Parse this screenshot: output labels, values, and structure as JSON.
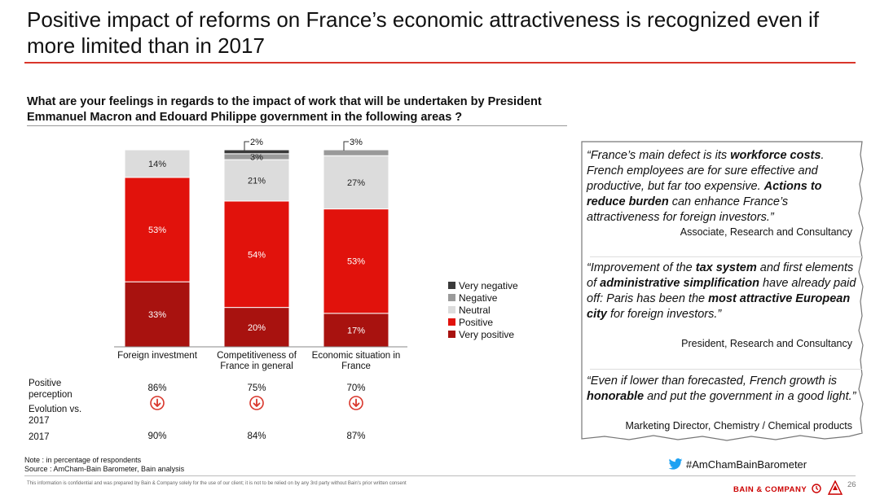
{
  "title": "Positive impact of reforms on France’s economic attractiveness is recognized even if more limited than in 2017",
  "question": "What are your feelings in regards to the impact of work that will be undertaken by President Emmanuel Macron and Edouard Philippe government in the following areas ?",
  "chart_data": {
    "type": "bar",
    "stacked": true,
    "categories": [
      "Foreign investment",
      "Competitiveness of France in general",
      "Economic situation in France"
    ],
    "series": [
      {
        "name": "Very positive",
        "color": "#a8120f",
        "values": [
          33,
          20,
          17
        ],
        "labels": [
          "33%",
          "20%",
          "17%"
        ]
      },
      {
        "name": "Positive",
        "color": "#e1120c",
        "values": [
          53,
          54,
          53
        ],
        "labels": [
          "53%",
          "54%",
          "53%"
        ]
      },
      {
        "name": "Neutral",
        "color": "#dcdcdc",
        "values": [
          14,
          21,
          27
        ],
        "labels": [
          "14%",
          "21%",
          "27%"
        ]
      },
      {
        "name": "Negative",
        "color": "#9a9a9a",
        "values": [
          0,
          3,
          3
        ],
        "labels": [
          "",
          "3%",
          ""
        ]
      },
      {
        "name": "Very negative",
        "color": "#3a3a3a",
        "values": [
          0,
          2,
          0
        ],
        "labels": [
          "",
          "",
          ""
        ]
      }
    ],
    "callouts": [
      {
        "category": 1,
        "series": "Very negative",
        "label": "2%"
      },
      {
        "category": 2,
        "series": "Negative",
        "label": "3%"
      }
    ],
    "legend_order": [
      "Very negative",
      "Negative",
      "Neutral",
      "Positive",
      "Very positive"
    ],
    "ylim": [
      0,
      100
    ],
    "legend_position": "right"
  },
  "rows": {
    "positive_label": "Positive perception",
    "positive_values": [
      "86%",
      "75%",
      "70%"
    ],
    "evolution_label": "Evolution vs. 2017",
    "evolution_icon": "down-arrow-icon",
    "year_label": "2017",
    "year_values": [
      "90%",
      "84%",
      "87%"
    ]
  },
  "quotes": [
    {
      "segments": [
        {
          "text": "“France’s main defect is its ",
          "bold": false
        },
        {
          "text": "workforce costs",
          "bold": true
        },
        {
          "text": ". French employees are for sure effective and productive, but far too expensive. ",
          "bold": false
        },
        {
          "text": "Actions to reduce burden",
          "bold": true
        },
        {
          "text": " can enhance France’s attractiveness for foreign investors.”",
          "bold": false
        }
      ],
      "author": "Associate, Research and Consultancy"
    },
    {
      "segments": [
        {
          "text": "“Improvement of the ",
          "bold": false
        },
        {
          "text": "tax system",
          "bold": true
        },
        {
          "text": " and first elements of ",
          "bold": false
        },
        {
          "text": "administrative simplification",
          "bold": true
        },
        {
          "text": " have already paid off: Paris has been the ",
          "bold": false
        },
        {
          "text": "most attractive European city",
          "bold": true
        },
        {
          "text": " for foreign investors.”",
          "bold": false
        }
      ],
      "author": "President, Research and Consultancy"
    },
    {
      "segments": [
        {
          "text": "“Even if lower than forecasted, French growth is ",
          "bold": false
        },
        {
          "text": "honorable",
          "bold": true
        },
        {
          "text": " and put the government in a good light.”",
          "bold": false
        }
      ],
      "author": "Marketing Director, Chemistry / Chemical products"
    }
  ],
  "notes": {
    "note": "Note : in percentage of respondents",
    "source": "Source : AmCham-Bain Barometer, Bain analysis"
  },
  "footer": {
    "disclaimer": "This information is confidential and was prepared by Bain & Company solely for the use of our client; it is not to be relied on by any 3rd party without Bain's prior written consent",
    "hashtag": "#AmChamBainBarometer",
    "brand": "BAIN & COMPANY",
    "page": "26"
  },
  "colors": {
    "accent": "#d9362b",
    "twitter": "#1da1f2"
  }
}
